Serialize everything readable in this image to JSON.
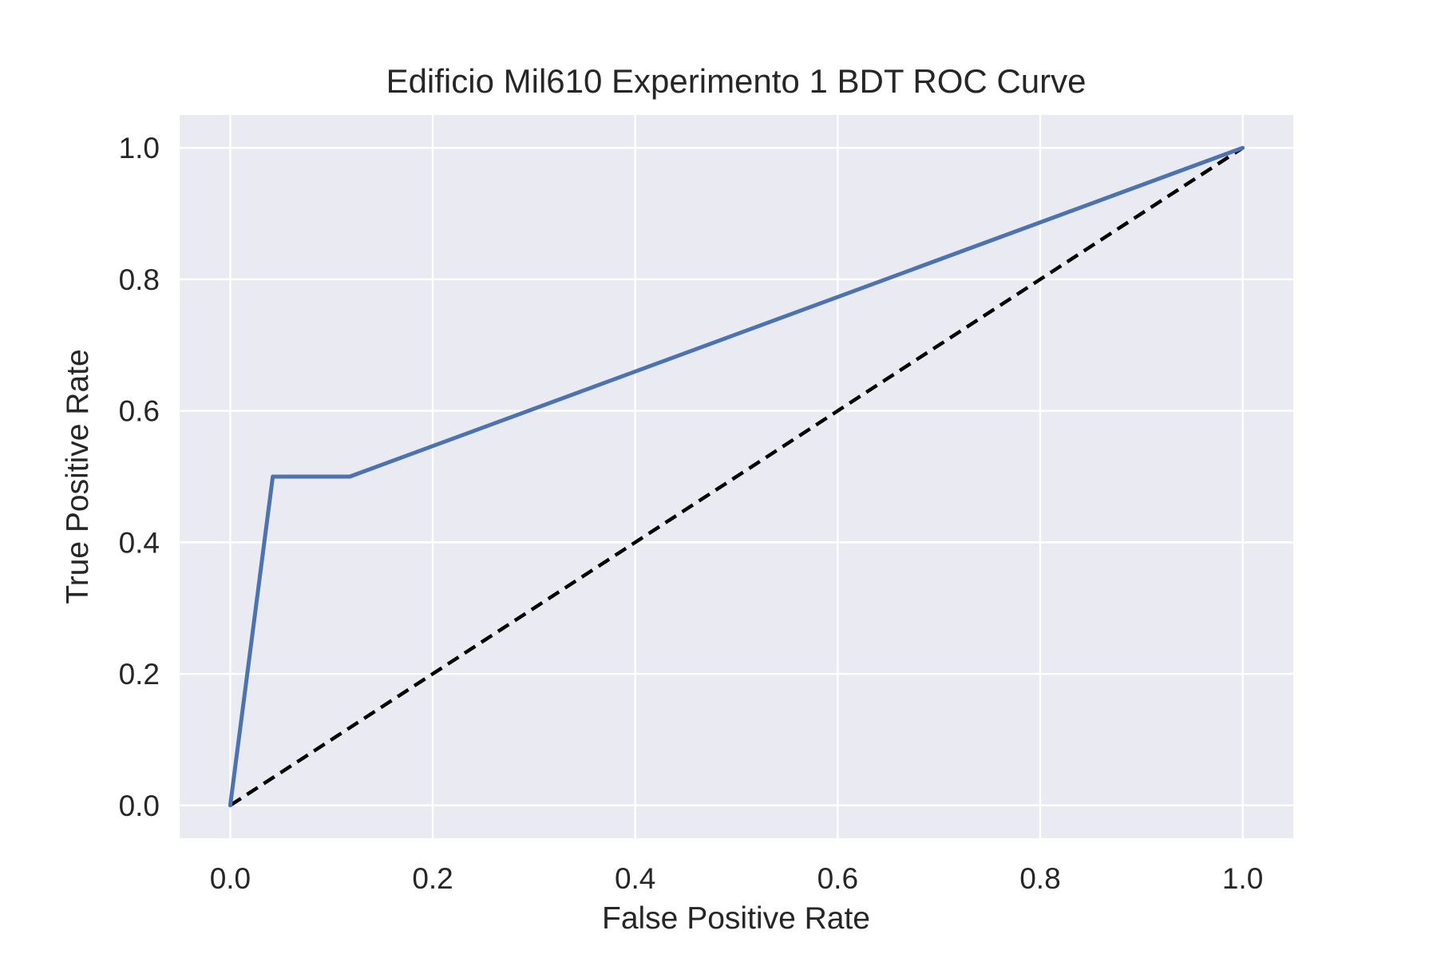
{
  "chart_data": {
    "type": "line",
    "title": "Edificio Mil610 Experimento 1 BDT ROC Curve",
    "xlabel": "False Positive Rate",
    "ylabel": "True Positive Rate",
    "xlim": [
      -0.05,
      1.05
    ],
    "ylim": [
      -0.05,
      1.05
    ],
    "xticks": [
      0.0,
      0.2,
      0.4,
      0.6,
      0.8,
      1.0
    ],
    "xtick_labels": [
      "0.0",
      "0.2",
      "0.4",
      "0.6",
      "0.8",
      "1.0"
    ],
    "yticks": [
      0.0,
      0.2,
      0.4,
      0.6,
      0.8,
      1.0
    ],
    "ytick_labels": [
      "0.0",
      "0.2",
      "0.4",
      "0.6",
      "0.8",
      "1.0"
    ],
    "grid": true,
    "legend": "none",
    "series": [
      {
        "style": "solid",
        "color": "#4c72b0",
        "x": [
          0.0,
          0.042,
          0.118,
          1.0
        ],
        "y": [
          0.0,
          0.5,
          0.5,
          1.0
        ]
      },
      {
        "style": "dashed",
        "color": "#000000",
        "x": [
          0.0,
          1.0
        ],
        "y": [
          0.0,
          1.0
        ]
      }
    ]
  }
}
